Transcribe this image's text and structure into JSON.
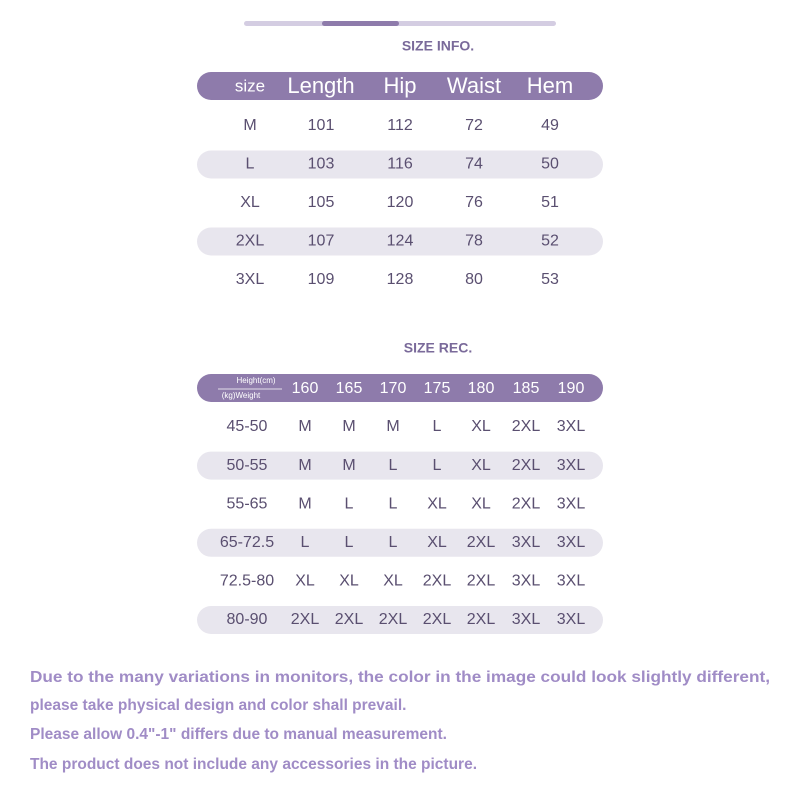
{
  "size_info": {
    "title": "SIZE INFO.",
    "headers": [
      "size",
      "Length",
      "Hip",
      "Waist",
      "Hem"
    ],
    "rows": [
      [
        "M",
        101,
        112,
        72,
        49
      ],
      [
        "L",
        103,
        116,
        74,
        50
      ],
      [
        "XL",
        105,
        120,
        76,
        51
      ],
      [
        "2XL",
        107,
        124,
        78,
        52
      ],
      [
        "3XL",
        109,
        128,
        80,
        53
      ]
    ]
  },
  "size_rec": {
    "title": "SIZE REC.",
    "corner": {
      "top": "Height(cm)",
      "bottom": "(kg)Weight"
    },
    "heights": [
      160,
      165,
      170,
      175,
      180,
      185,
      190
    ],
    "rows": [
      {
        "weight": "45-50",
        "sizes": [
          "M",
          "M",
          "M",
          "L",
          "XL",
          "2XL",
          "3XL"
        ]
      },
      {
        "weight": "50-55",
        "sizes": [
          "M",
          "M",
          "L",
          "L",
          "XL",
          "2XL",
          "3XL"
        ]
      },
      {
        "weight": "55-65",
        "sizes": [
          "M",
          "L",
          "L",
          "XL",
          "XL",
          "2XL",
          "3XL"
        ]
      },
      {
        "weight": "65-72.5",
        "sizes": [
          "L",
          "L",
          "L",
          "XL",
          "2XL",
          "3XL",
          "3XL"
        ]
      },
      {
        "weight": "72.5-80",
        "sizes": [
          "XL",
          "XL",
          "XL",
          "2XL",
          "2XL",
          "3XL",
          "3XL"
        ]
      },
      {
        "weight": "80-90",
        "sizes": [
          "2XL",
          "2XL",
          "2XL",
          "2XL",
          "2XL",
          "3XL",
          "3XL"
        ]
      }
    ]
  },
  "notes": [
    "Due to the many variations in monitors, the color in the image could look slightly different,",
    "please take physical design and color shall prevail.",
    "Please allow 0.4\"-1\" differs due to manual measurement.",
    "The product does not include any accessories in the picture."
  ]
}
